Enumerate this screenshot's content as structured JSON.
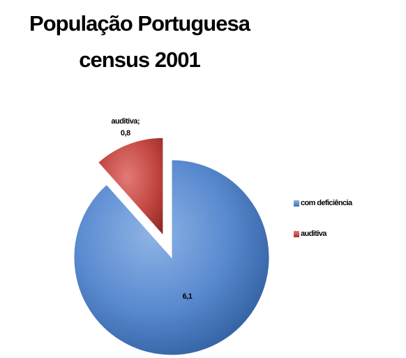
{
  "chart_data": {
    "type": "pie",
    "title": "População Portuguesa",
    "subtitle": "census 2001",
    "categories": [
      "com deficiência",
      "auditiva"
    ],
    "values": [
      6.1,
      0.8
    ],
    "data_labels": [
      "6,1",
      "auditiva;\n0,8"
    ],
    "colors": [
      "#4f81bd",
      "#c0504d"
    ],
    "exploded": [
      false,
      true
    ],
    "legend": {
      "position": "right",
      "entries": [
        "com deficiência",
        "auditiva"
      ]
    }
  }
}
